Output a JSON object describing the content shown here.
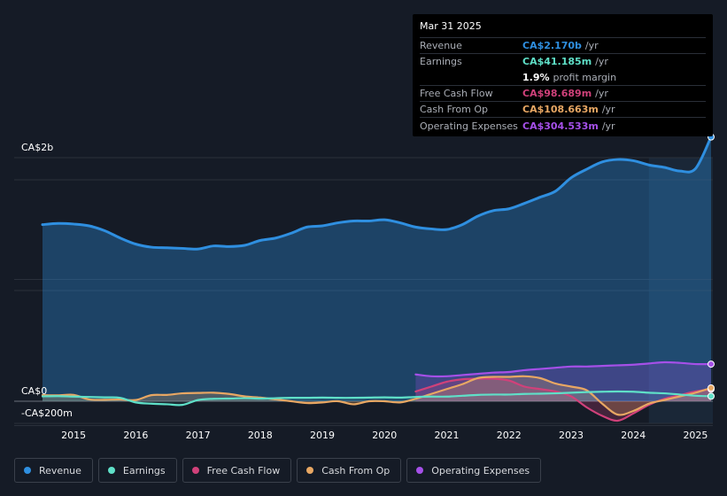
{
  "tooltip": {
    "date": "Mar 31 2025",
    "rows": [
      {
        "label": "Revenue",
        "value": "CA$2.170b",
        "unit": "/yr",
        "color": "#2f8fe0"
      },
      {
        "label": "Earnings",
        "value": "CA$41.185m",
        "unit": "/yr",
        "color": "#5fe0c8"
      },
      {
        "label": "",
        "value": "1.9%",
        "unit": "profit margin",
        "color": "#ffffff"
      },
      {
        "label": "Free Cash Flow",
        "value": "CA$98.689m",
        "unit": "/yr",
        "color": "#d0417a"
      },
      {
        "label": "Cash From Op",
        "value": "CA$108.663m",
        "unit": "/yr",
        "color": "#e8a763"
      },
      {
        "label": "Operating Expenses",
        "value": "CA$304.533m",
        "unit": "/yr",
        "color": "#a550e8"
      }
    ]
  },
  "chart_data": {
    "type": "line",
    "title": "",
    "xlabel": "",
    "ylabel": "",
    "y_tick_labels": [
      "CA$2b",
      "CA$0",
      "-CA$200m"
    ],
    "x_tick_labels": [
      "2015",
      "2016",
      "2017",
      "2018",
      "2019",
      "2020",
      "2021",
      "2022",
      "2023",
      "2024",
      "2025"
    ],
    "xlim": [
      2014.5,
      2025.25
    ],
    "ylim": [
      -200,
      2200
    ],
    "x": [
      2014.5,
      2014.75,
      2015.0,
      2015.25,
      2015.5,
      2015.75,
      2016.0,
      2016.25,
      2016.5,
      2016.75,
      2017.0,
      2017.25,
      2017.5,
      2017.75,
      2018.0,
      2018.25,
      2018.5,
      2018.75,
      2019.0,
      2019.25,
      2019.5,
      2019.75,
      2020.0,
      2020.25,
      2020.5,
      2020.75,
      2021.0,
      2021.25,
      2021.5,
      2021.75,
      2022.0,
      2022.25,
      2022.5,
      2022.75,
      2023.0,
      2023.25,
      2023.5,
      2023.75,
      2024.0,
      2024.25,
      2024.5,
      2024.75,
      2025.0,
      2025.25
    ],
    "series": [
      {
        "name": "Revenue",
        "color": "#2f8fe0",
        "values": [
          1450,
          1460,
          1455,
          1440,
          1400,
          1340,
          1290,
          1265,
          1260,
          1255,
          1250,
          1275,
          1270,
          1280,
          1320,
          1340,
          1380,
          1430,
          1440,
          1465,
          1480,
          1480,
          1490,
          1465,
          1430,
          1415,
          1410,
          1450,
          1520,
          1565,
          1580,
          1625,
          1675,
          1725,
          1835,
          1905,
          1965,
          1985,
          1975,
          1940,
          1920,
          1890,
          1910,
          2170
        ]
      },
      {
        "name": "Earnings",
        "color": "#5fe0c8",
        "values": [
          40,
          42,
          38,
          35,
          32,
          28,
          -10,
          -20,
          -25,
          -30,
          10,
          20,
          22,
          25,
          22,
          25,
          28,
          28,
          30,
          28,
          28,
          30,
          32,
          30,
          35,
          38,
          38,
          45,
          52,
          55,
          55,
          60,
          62,
          65,
          70,
          75,
          78,
          80,
          78,
          70,
          65,
          55,
          45,
          41
        ]
      },
      {
        "name": "Free Cash Flow",
        "color": "#d0417a",
        "values": [
          null,
          null,
          null,
          null,
          null,
          null,
          null,
          null,
          null,
          null,
          null,
          null,
          null,
          null,
          null,
          null,
          null,
          null,
          null,
          null,
          null,
          null,
          null,
          null,
          80,
          120,
          160,
          180,
          185,
          185,
          170,
          120,
          100,
          80,
          40,
          -50,
          -120,
          -160,
          -100,
          -30,
          20,
          50,
          80,
          99
        ]
      },
      {
        "name": "Cash From Op",
        "color": "#e8a763",
        "values": [
          50,
          48,
          52,
          15,
          12,
          14,
          10,
          50,
          52,
          65,
          68,
          70,
          60,
          40,
          30,
          15,
          0,
          -15,
          -10,
          0,
          -25,
          0,
          0,
          -10,
          20,
          60,
          100,
          140,
          190,
          200,
          200,
          205,
          190,
          145,
          120,
          90,
          -20,
          -110,
          -80,
          -20,
          10,
          40,
          70,
          109
        ]
      },
      {
        "name": "Operating Expenses",
        "color": "#a550e8",
        "values": [
          null,
          null,
          null,
          null,
          null,
          null,
          null,
          null,
          null,
          null,
          null,
          null,
          null,
          null,
          null,
          null,
          null,
          null,
          null,
          null,
          null,
          null,
          null,
          null,
          220,
          205,
          205,
          215,
          225,
          235,
          240,
          255,
          265,
          275,
          285,
          285,
          290,
          295,
          300,
          310,
          320,
          315,
          305,
          305
        ]
      }
    ]
  },
  "legend": [
    {
      "label": "Revenue",
      "color": "#2f8fe0"
    },
    {
      "label": "Earnings",
      "color": "#5fe0c8"
    },
    {
      "label": "Free Cash Flow",
      "color": "#d0417a"
    },
    {
      "label": "Cash From Op",
      "color": "#e8a763"
    },
    {
      "label": "Operating Expenses",
      "color": "#a550e8"
    }
  ]
}
